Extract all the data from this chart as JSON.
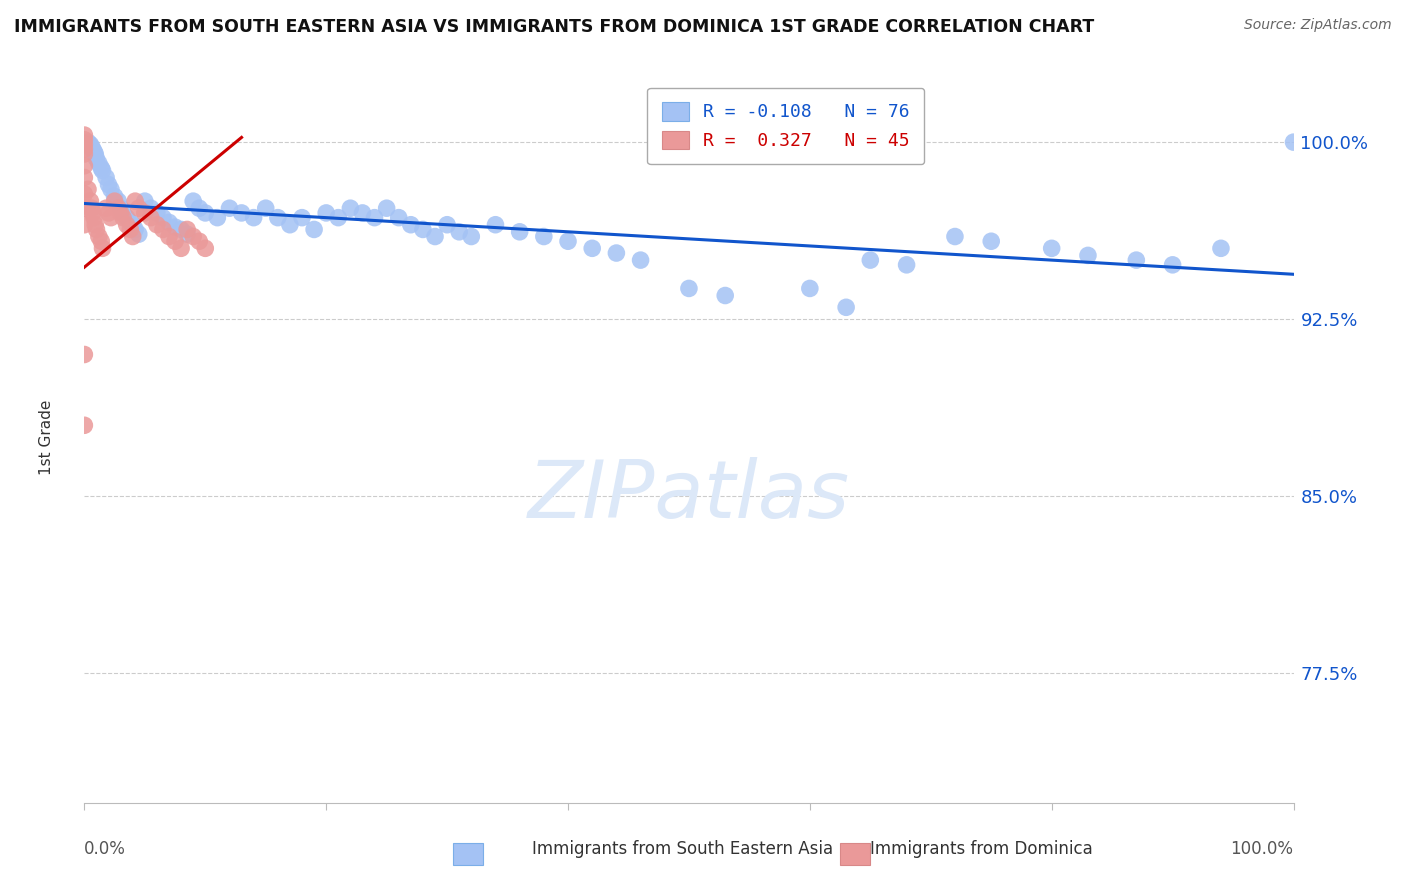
{
  "title": "IMMIGRANTS FROM SOUTH EASTERN ASIA VS IMMIGRANTS FROM DOMINICA 1ST GRADE CORRELATION CHART",
  "source": "Source: ZipAtlas.com",
  "ylabel": "1st Grade",
  "ytick_labels": [
    "100.0%",
    "92.5%",
    "85.0%",
    "77.5%"
  ],
  "ytick_values": [
    1.0,
    0.925,
    0.85,
    0.775
  ],
  "xlim": [
    0.0,
    1.0
  ],
  "ylim": [
    0.72,
    1.03
  ],
  "blue_color": "#a4c2f4",
  "pink_color": "#ea9999",
  "trend_blue_color": "#1155cc",
  "trend_pink_color": "#cc0000",
  "watermark_color": "#dce8f8",
  "blue_trend_x0": 0.0,
  "blue_trend_y0": 0.974,
  "blue_trend_x1": 1.0,
  "blue_trend_y1": 0.944,
  "pink_trend_x0": 0.0,
  "pink_trend_y0": 0.947,
  "pink_trend_x1": 0.13,
  "pink_trend_y1": 1.002,
  "blue_x": [
    0.003,
    0.005,
    0.006,
    0.007,
    0.008,
    0.009,
    0.01,
    0.012,
    0.014,
    0.015,
    0.018,
    0.02,
    0.022,
    0.025,
    0.028,
    0.03,
    0.032,
    0.035,
    0.038,
    0.04,
    0.042,
    0.045,
    0.05,
    0.055,
    0.06,
    0.065,
    0.07,
    0.075,
    0.08,
    0.085,
    0.09,
    0.095,
    0.1,
    0.11,
    0.12,
    0.13,
    0.14,
    0.15,
    0.16,
    0.17,
    0.18,
    0.19,
    0.2,
    0.21,
    0.22,
    0.23,
    0.24,
    0.25,
    0.26,
    0.27,
    0.28,
    0.29,
    0.3,
    0.31,
    0.32,
    0.34,
    0.36,
    0.38,
    0.4,
    0.42,
    0.44,
    0.46,
    0.5,
    0.53,
    0.6,
    0.63,
    0.65,
    0.68,
    0.72,
    0.75,
    0.8,
    0.83,
    0.87,
    0.9,
    0.94,
    1.0
  ],
  "blue_y": [
    1.0,
    0.999,
    0.998,
    0.997,
    0.996,
    0.995,
    0.993,
    0.991,
    0.989,
    0.988,
    0.985,
    0.982,
    0.98,
    0.977,
    0.975,
    0.972,
    0.97,
    0.968,
    0.966,
    0.965,
    0.963,
    0.961,
    0.975,
    0.972,
    0.97,
    0.968,
    0.966,
    0.964,
    0.963,
    0.961,
    0.975,
    0.972,
    0.97,
    0.968,
    0.972,
    0.97,
    0.968,
    0.972,
    0.968,
    0.965,
    0.968,
    0.963,
    0.97,
    0.968,
    0.972,
    0.97,
    0.968,
    0.972,
    0.968,
    0.965,
    0.963,
    0.96,
    0.965,
    0.962,
    0.96,
    0.965,
    0.962,
    0.96,
    0.958,
    0.955,
    0.953,
    0.95,
    0.938,
    0.935,
    0.938,
    0.93,
    0.95,
    0.948,
    0.96,
    0.958,
    0.955,
    0.952,
    0.95,
    0.948,
    0.955,
    1.0
  ],
  "pink_x": [
    0.0,
    0.0,
    0.0,
    0.0,
    0.0,
    0.0,
    0.0,
    0.0,
    0.0,
    0.0,
    0.003,
    0.005,
    0.006,
    0.007,
    0.008,
    0.009,
    0.01,
    0.012,
    0.014,
    0.015,
    0.018,
    0.02,
    0.022,
    0.025,
    0.028,
    0.03,
    0.032,
    0.035,
    0.038,
    0.04,
    0.042,
    0.045,
    0.05,
    0.055,
    0.06,
    0.065,
    0.07,
    0.075,
    0.08,
    0.085,
    0.09,
    0.095,
    0.1,
    0.0,
    0.0
  ],
  "pink_y": [
    1.003,
    1.001,
    0.999,
    0.997,
    0.995,
    0.99,
    0.985,
    0.978,
    0.972,
    0.965,
    0.98,
    0.975,
    0.972,
    0.97,
    0.968,
    0.965,
    0.963,
    0.96,
    0.958,
    0.955,
    0.972,
    0.97,
    0.968,
    0.975,
    0.972,
    0.97,
    0.968,
    0.965,
    0.963,
    0.96,
    0.975,
    0.972,
    0.97,
    0.968,
    0.965,
    0.963,
    0.96,
    0.958,
    0.955,
    0.963,
    0.96,
    0.958,
    0.955,
    0.91,
    0.88
  ]
}
